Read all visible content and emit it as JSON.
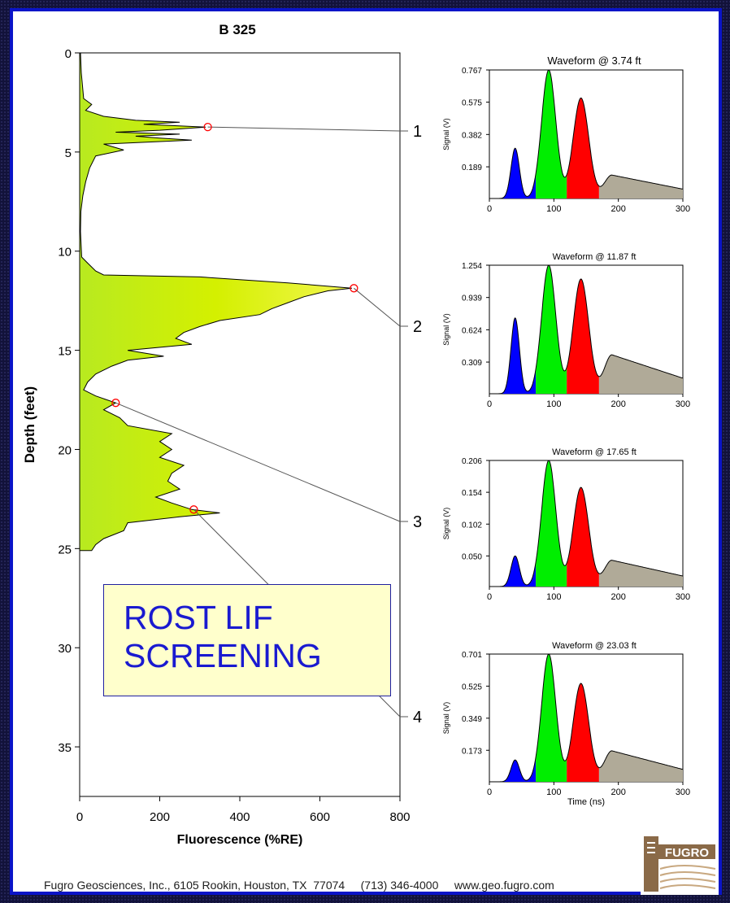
{
  "title": "B 325",
  "callout": {
    "line1": "ROST LIF",
    "line2": "SCREENING"
  },
  "footer": {
    "company": "Fugro Geosciences, Inc., 6105 Rookin, Houston, TX  77074",
    "phone": "(713) 346-4000",
    "web": "www.geo.fugro.com"
  },
  "logo": {
    "text": "FUGRO",
    "icon": "fugro-logo"
  },
  "colors": {
    "panel_border": "#0a14c8",
    "log_fill": "#d4f000",
    "peak_blue": "#0000ff",
    "peak_green": "#00ee00",
    "peak_red": "#ff0000",
    "peak_gray": "#b0aa98",
    "marker": "#ff0000",
    "callout_text": "#1a1ad0"
  },
  "chart_data": [
    {
      "type": "area",
      "title": "B 325",
      "xlabel": "Fluorescence (%RE)",
      "ylabel": "Depth (feet)",
      "xlim": [
        0,
        800
      ],
      "ylim": [
        0,
        37.5
      ],
      "y_inverted": true,
      "xticks": [
        0,
        200,
        400,
        600,
        800
      ],
      "yticks": [
        0,
        5,
        10,
        15,
        20,
        25,
        30,
        35
      ],
      "grid": false,
      "profile": [
        [
          0,
          2
        ],
        [
          1,
          4
        ],
        [
          2.3,
          10
        ],
        [
          2.6,
          30
        ],
        [
          2.9,
          15
        ],
        [
          3.2,
          60
        ],
        [
          3.4,
          140
        ],
        [
          3.5,
          250
        ],
        [
          3.6,
          160
        ],
        [
          3.74,
          315
        ],
        [
          3.9,
          200
        ],
        [
          4.0,
          90
        ],
        [
          4.1,
          250
        ],
        [
          4.2,
          140
        ],
        [
          4.3,
          200
        ],
        [
          4.4,
          280
        ],
        [
          4.6,
          60
        ],
        [
          4.9,
          110
        ],
        [
          5.2,
          40
        ],
        [
          5.8,
          25
        ],
        [
          6.5,
          15
        ],
        [
          7.2,
          8
        ],
        [
          8,
          3
        ],
        [
          9,
          2
        ],
        [
          10.3,
          5
        ],
        [
          10.6,
          20
        ],
        [
          11.0,
          40
        ],
        [
          11.2,
          60
        ],
        [
          11.3,
          300
        ],
        [
          11.6,
          520
        ],
        [
          11.87,
          680
        ],
        [
          12.0,
          620
        ],
        [
          12.3,
          560
        ],
        [
          12.6,
          520
        ],
        [
          12.9,
          480
        ],
        [
          13.2,
          450
        ],
        [
          13.5,
          350
        ],
        [
          13.8,
          300
        ],
        [
          14.1,
          260
        ],
        [
          14.4,
          240
        ],
        [
          14.7,
          280
        ],
        [
          15.0,
          120
        ],
        [
          15.3,
          210
        ],
        [
          15.5,
          120
        ],
        [
          15.8,
          80
        ],
        [
          16.2,
          40
        ],
        [
          16.6,
          20
        ],
        [
          17.0,
          10
        ],
        [
          17.3,
          40
        ],
        [
          17.65,
          90
        ],
        [
          18.0,
          60
        ],
        [
          18.4,
          100
        ],
        [
          18.8,
          120
        ],
        [
          19.2,
          230
        ],
        [
          19.6,
          200
        ],
        [
          20.0,
          230
        ],
        [
          20.4,
          200
        ],
        [
          20.8,
          260
        ],
        [
          21.2,
          230
        ],
        [
          21.6,
          220
        ],
        [
          22.0,
          250
        ],
        [
          22.4,
          190
        ],
        [
          22.7,
          230
        ],
        [
          23.03,
          280
        ],
        [
          23.2,
          350
        ],
        [
          23.4,
          250
        ],
        [
          23.7,
          120
        ],
        [
          24.1,
          110
        ],
        [
          24.5,
          60
        ],
        [
          24.8,
          40
        ],
        [
          25.1,
          30
        ],
        [
          25.1,
          0
        ]
      ],
      "markers": [
        {
          "label": "1",
          "depth": 3.74,
          "value": 320
        },
        {
          "label": "2",
          "depth": 11.87,
          "value": 685
        },
        {
          "label": "3",
          "depth": 17.65,
          "value": 90
        },
        {
          "label": "4",
          "depth": 23.03,
          "value": 285
        }
      ]
    },
    {
      "type": "area",
      "title": "Waveform @ 3.74 ft",
      "ylabel": "Signal (V)",
      "xlim": [
        0,
        300
      ],
      "xticks": [
        0,
        100,
        200,
        300
      ],
      "yticks": [
        0.189,
        0.382,
        0.575,
        0.767
      ],
      "ylim": [
        0,
        0.767
      ],
      "peaks": [
        0.3,
        0.767,
        0.6,
        0.14
      ]
    },
    {
      "type": "area",
      "title": "Waveform @ 11.87 ft",
      "ylabel": "Signal (V)",
      "xlim": [
        0,
        300
      ],
      "xticks": [
        0,
        100,
        200,
        300
      ],
      "yticks": [
        0.309,
        0.624,
        0.939,
        1.254
      ],
      "ylim": [
        0,
        1.254
      ],
      "peaks": [
        0.74,
        1.254,
        1.12,
        0.38
      ]
    },
    {
      "type": "area",
      "title": "Waveform @ 17.65 ft",
      "ylabel": "Signal (V)",
      "xlim": [
        0,
        300
      ],
      "xticks": [
        0,
        100,
        200,
        300
      ],
      "yticks": [
        0.05,
        0.102,
        0.154,
        0.206
      ],
      "ylim": [
        0,
        0.206
      ],
      "peaks": [
        0.05,
        0.206,
        0.162,
        0.043
      ]
    },
    {
      "type": "area",
      "title": "Waveform @ 23.03 ft",
      "ylabel": "Signal (V)",
      "xlabel": "Time (ns)",
      "xlim": [
        0,
        300
      ],
      "xticks": [
        0,
        100,
        200,
        300
      ],
      "yticks": [
        0.173,
        0.349,
        0.525,
        0.701
      ],
      "ylim": [
        0,
        0.701
      ],
      "peaks": [
        0.12,
        0.701,
        0.54,
        0.17
      ]
    }
  ]
}
